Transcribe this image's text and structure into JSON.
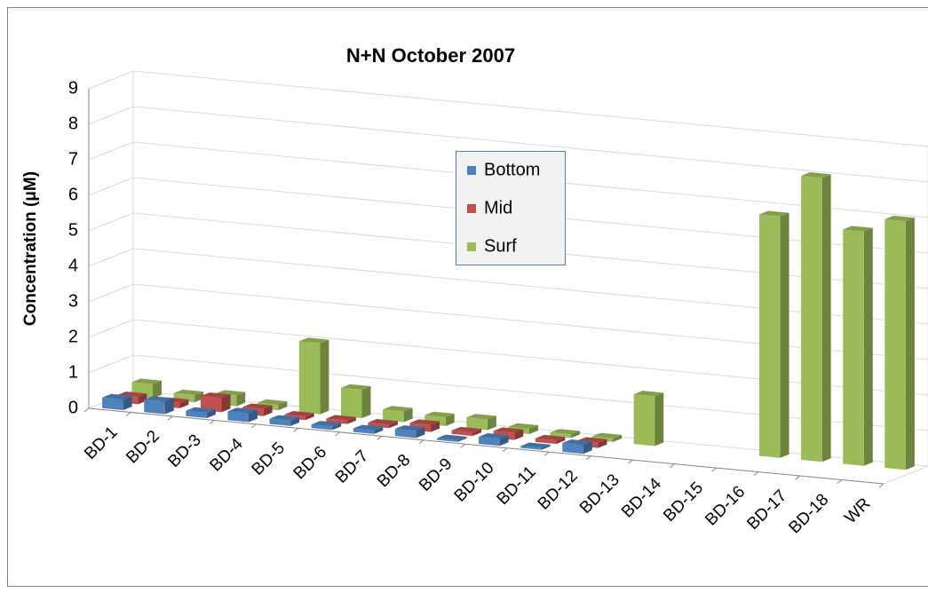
{
  "chart_data": {
    "type": "bar3d",
    "title": "N+N October 2007",
    "y_label": "Concentration (μM)",
    "categories": [
      "BD-1",
      "BD-2",
      "BD-3",
      "BD-4",
      "BD-5",
      "BD-6",
      "BD-7",
      "BD-8",
      "BD-9",
      "BD-10",
      "BD-11",
      "BD-12",
      "BD-13",
      "BD-14",
      "BD-15",
      "BD-16",
      "BD-17",
      "BD-18",
      "WR"
    ],
    "series": [
      {
        "name": "Bottom",
        "color": "#4f81bd",
        "values": [
          0.3,
          0.35,
          0.15,
          0.25,
          0.15,
          0.1,
          0.1,
          0.2,
          0.05,
          0.2,
          0.05,
          0.25,
          null,
          null,
          null,
          null,
          null,
          null,
          null
        ]
      },
      {
        "name": "Mid",
        "color": "#c0504d",
        "values": [
          0.2,
          0.15,
          0.4,
          0.2,
          0.1,
          0.1,
          0.1,
          0.2,
          0.1,
          0.2,
          0.1,
          0.15,
          null,
          null,
          null,
          null,
          null,
          null,
          null
        ]
      },
      {
        "name": "Surf",
        "color": "#9bbb59",
        "values": [
          0.4,
          0.2,
          0.3,
          0.15,
          2.0,
          0.8,
          0.3,
          0.25,
          0.3,
          0.15,
          0.1,
          0.1,
          1.4,
          null,
          null,
          6.8,
          8.0,
          6.6,
          7.0
        ]
      }
    ],
    "ylim": [
      0,
      9
    ],
    "yticks": [
      0,
      1,
      2,
      3,
      4,
      5,
      6,
      7,
      8,
      9
    ],
    "grid": true
  }
}
